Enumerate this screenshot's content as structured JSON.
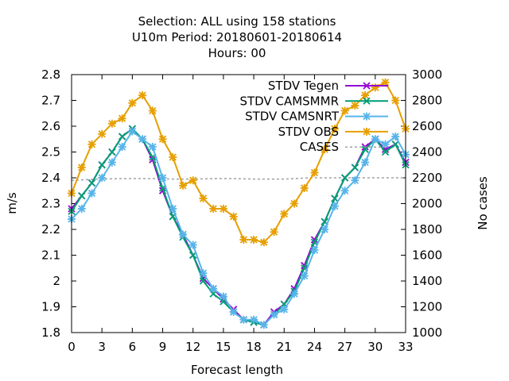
{
  "chart_data": {
    "type": "line",
    "title_lines": [
      "Selection: ALL using   158 stations",
      "U10m   Period: 20180601-20180614",
      "Hours:  00"
    ],
    "xlabel": "Forecast length",
    "ylabel": "m/s",
    "y2label": "No cases",
    "xlim": [
      0,
      33
    ],
    "ylim": [
      1.8,
      2.8
    ],
    "y2lim": [
      1000,
      3000
    ],
    "x_ticks": [
      "0",
      "3",
      "6",
      "9",
      "12",
      "15",
      "18",
      "21",
      "24",
      "27",
      "30",
      "33"
    ],
    "y_ticks": [
      "1.8",
      "1.9",
      "2",
      "2.1",
      "2.2",
      "2.3",
      "2.4",
      "2.5",
      "2.6",
      "2.7",
      "2.8"
    ],
    "y2_ticks": [
      "1000",
      "1200",
      "1400",
      "1600",
      "1800",
      "2000",
      "2200",
      "2400",
      "2600",
      "2800",
      "3000"
    ],
    "legend_position": "top-right",
    "x": [
      0,
      1,
      2,
      3,
      4,
      5,
      6,
      7,
      8,
      9,
      10,
      11,
      12,
      13,
      14,
      15,
      16,
      17,
      18,
      19,
      20,
      21,
      22,
      23,
      24,
      25,
      26,
      27,
      28,
      29,
      30,
      31,
      32,
      33
    ],
    "series": [
      {
        "name": "STDV Tegen",
        "color": "#9400d3",
        "marker": "x",
        "values": [
          2.28,
          2.33,
          2.38,
          2.45,
          2.5,
          2.56,
          2.59,
          2.55,
          2.47,
          2.35,
          2.25,
          2.18,
          2.1,
          2.01,
          1.97,
          1.93,
          1.89,
          1.85,
          1.84,
          1.83,
          1.88,
          1.91,
          1.97,
          2.06,
          2.16,
          2.23,
          2.32,
          2.4,
          2.44,
          2.52,
          2.55,
          2.51,
          2.53,
          2.46
        ]
      },
      {
        "name": "STDV CAMSMMR",
        "color": "#009e73",
        "marker": "x",
        "values": [
          2.27,
          2.33,
          2.38,
          2.45,
          2.5,
          2.56,
          2.59,
          2.55,
          2.48,
          2.36,
          2.25,
          2.17,
          2.1,
          2.0,
          1.95,
          1.92,
          1.88,
          1.85,
          1.84,
          1.83,
          1.87,
          1.91,
          1.96,
          2.05,
          2.15,
          2.23,
          2.32,
          2.4,
          2.44,
          2.51,
          2.55,
          2.5,
          2.53,
          2.45
        ]
      },
      {
        "name": "STDV CAMSNRT",
        "color": "#56b4e9",
        "marker": "asterisk",
        "values": [
          2.24,
          2.28,
          2.34,
          2.4,
          2.46,
          2.52,
          2.58,
          2.55,
          2.52,
          2.4,
          2.28,
          2.18,
          2.14,
          2.03,
          1.97,
          1.94,
          1.88,
          1.85,
          1.85,
          1.83,
          1.87,
          1.89,
          1.95,
          2.02,
          2.12,
          2.2,
          2.29,
          2.35,
          2.39,
          2.46,
          2.55,
          2.53,
          2.56,
          2.49
        ]
      },
      {
        "name": "STDV OBS",
        "color": "#e69f00",
        "marker": "asterisk",
        "values": [
          2.34,
          2.44,
          2.53,
          2.57,
          2.61,
          2.63,
          2.69,
          2.72,
          2.66,
          2.55,
          2.48,
          2.37,
          2.39,
          2.32,
          2.28,
          2.28,
          2.25,
          2.16,
          2.16,
          2.15,
          2.19,
          2.26,
          2.3,
          2.36,
          2.42,
          2.51,
          2.59,
          2.66,
          2.68,
          2.72,
          2.75,
          2.77,
          2.7,
          2.59
        ]
      },
      {
        "name": "CASES",
        "color": "#a0a0a0",
        "dashed": true,
        "axis": "y2",
        "values": [
          2180,
          2184,
          2188,
          2190,
          2192,
          2194,
          2194,
          2194,
          2194,
          2192,
          2190,
          2190,
          2190,
          2192,
          2194,
          2194,
          2194,
          2192,
          2190,
          2190,
          2190,
          2190,
          2194,
          2198,
          2200,
          2200,
          2200,
          2200,
          2200,
          2200,
          2200,
          2200,
          2200,
          2200
        ]
      }
    ]
  }
}
